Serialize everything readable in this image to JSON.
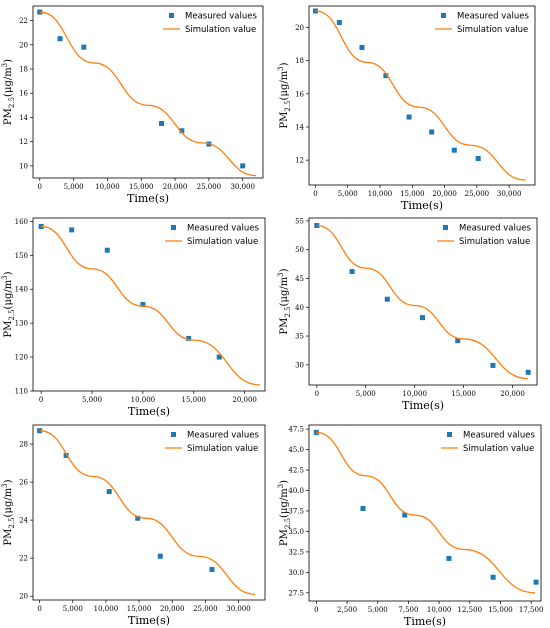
{
  "colors": {
    "measured": "#1f77b4",
    "simulation": "#ff7f0e",
    "axis": "#000000"
  },
  "chart_data": [
    {
      "type": "scatter+line",
      "legend_position": "top-right",
      "xlabel": "Time(s)",
      "ylabel": "PM2.5(μg/m³)",
      "xlim": [
        -1000,
        33000
      ],
      "ylim": [
        9.0,
        23.2
      ],
      "xticks": [
        0,
        5000,
        10000,
        15000,
        20000,
        25000,
        30000
      ],
      "xtick_labels": [
        "0",
        "5,000",
        "10,000",
        "15,000",
        "20,000",
        "25,000",
        "30,000"
      ],
      "yticks": [
        10,
        12,
        14,
        16,
        18,
        20,
        22
      ],
      "ytick_labels": [
        "10",
        "12",
        "14",
        "16",
        "18",
        "20",
        "22"
      ],
      "series": [
        {
          "name": "Measured values",
          "kind": "scatter",
          "x": [
            0,
            3000,
            6500,
            18000,
            21000,
            25000,
            30000
          ],
          "y": [
            22.7,
            20.5,
            19.8,
            13.5,
            12.9,
            11.8,
            10.0
          ]
        },
        {
          "name": "Simulation value",
          "kind": "line",
          "x": [
            0,
            8000,
            16000,
            24000,
            32000
          ],
          "y": [
            22.7,
            18.5,
            15.0,
            11.9,
            9.2
          ]
        }
      ]
    },
    {
      "type": "scatter+line",
      "legend_position": "top-right",
      "xlabel": "Time(s)",
      "ylabel": "PM2.5(μg/m³)",
      "xlim": [
        -1000,
        34000
      ],
      "ylim": [
        10.5,
        21.3
      ],
      "xticks": [
        0,
        5000,
        10000,
        15000,
        20000,
        25000,
        30000
      ],
      "xtick_labels": [
        "0",
        "5,000",
        "10,000",
        "15,000",
        "20,000",
        "25,000",
        "30,000"
      ],
      "yticks": [
        12,
        14,
        16,
        18,
        20
      ],
      "ytick_labels": [
        "12",
        "14",
        "16",
        "18",
        "20"
      ],
      "series": [
        {
          "name": "Measured values",
          "kind": "scatter",
          "x": [
            0,
            3700,
            7200,
            10900,
            14500,
            18000,
            21500,
            25200
          ],
          "y": [
            21.0,
            20.3,
            18.8,
            17.1,
            14.6,
            13.7,
            12.6,
            12.1
          ]
        },
        {
          "name": "Simulation value",
          "kind": "line",
          "x": [
            0,
            8000,
            16000,
            24000,
            32500
          ],
          "y": [
            21.0,
            17.9,
            15.2,
            12.9,
            10.8
          ]
        }
      ]
    },
    {
      "type": "scatter+line",
      "legend_position": "top-right",
      "xlabel": "Time(s)",
      "ylabel": "PM2.5(μg/m³)",
      "xlim": [
        -800,
        22000
      ],
      "ylim": [
        110,
        161
      ],
      "xticks": [
        0,
        5000,
        10000,
        15000,
        20000
      ],
      "xtick_labels": [
        "0",
        "5,000",
        "10,000",
        "15,000",
        "20,000"
      ],
      "yticks": [
        110,
        120,
        130,
        140,
        150,
        160
      ],
      "ytick_labels": [
        "110",
        "120",
        "130",
        "140",
        "150",
        "160"
      ],
      "series": [
        {
          "name": "Measured values",
          "kind": "scatter",
          "x": [
            0,
            3000,
            6500,
            10000,
            14500,
            17500
          ],
          "y": [
            158.5,
            157.5,
            151.5,
            135.5,
            125.5,
            120.0
          ]
        },
        {
          "name": "Simulation value",
          "kind": "line",
          "x": [
            0,
            5000,
            10000,
            15000,
            21500
          ],
          "y": [
            158.5,
            146.0,
            135.0,
            125.0,
            111.8
          ]
        }
      ]
    },
    {
      "type": "scatter+line",
      "legend_position": "top-right",
      "xlabel": "Time(s)",
      "ylabel": "PM2.5(μg/m³)",
      "xlim": [
        -800,
        22500
      ],
      "ylim": [
        26.5,
        55.5
      ],
      "xticks": [
        0,
        5000,
        10000,
        15000,
        20000
      ],
      "xtick_labels": [
        "0",
        "5,000",
        "10,000",
        "15,000",
        "20,000"
      ],
      "yticks": [
        30,
        35,
        40,
        45,
        50,
        55
      ],
      "ytick_labels": [
        "30",
        "35",
        "40",
        "45",
        "50",
        "55"
      ],
      "series": [
        {
          "name": "Measured values",
          "kind": "scatter",
          "x": [
            0,
            3600,
            7200,
            10800,
            14400,
            18000,
            21600
          ],
          "y": [
            54.2,
            46.2,
            41.4,
            38.2,
            34.2,
            29.9,
            28.7
          ]
        },
        {
          "name": "Simulation value",
          "kind": "line",
          "x": [
            0,
            5000,
            10000,
            15000,
            21600
          ],
          "y": [
            54.2,
            46.8,
            40.3,
            34.5,
            27.6
          ]
        }
      ]
    },
    {
      "type": "scatter+line",
      "legend_position": "top-right",
      "xlabel": "Time(s)",
      "ylabel": "PM2.5(μg/m³)",
      "xlim": [
        -1000,
        34000
      ],
      "ylim": [
        19.8,
        29.0
      ],
      "xticks": [
        0,
        5000,
        10000,
        15000,
        20000,
        25000,
        30000
      ],
      "xtick_labels": [
        "0",
        "5,000",
        "10,000",
        "15,000",
        "20,000",
        "25,000",
        "30,000"
      ],
      "yticks": [
        20,
        22,
        24,
        26,
        28
      ],
      "ytick_labels": [
        "20",
        "22",
        "24",
        "26",
        "28"
      ],
      "series": [
        {
          "name": "Measured values",
          "kind": "scatter",
          "x": [
            0,
            4000,
            10500,
            14800,
            18200,
            26000
          ],
          "y": [
            28.7,
            27.4,
            25.5,
            24.1,
            22.1,
            21.4
          ]
        },
        {
          "name": "Simulation value",
          "kind": "line",
          "x": [
            0,
            8000,
            16000,
            24000,
            32500
          ],
          "y": [
            28.7,
            26.3,
            24.1,
            22.1,
            20.1
          ]
        }
      ]
    },
    {
      "type": "scatter+line",
      "legend_position": "top-right",
      "xlabel": "Time(s)",
      "ylabel": "PM2.5(μg/m³)",
      "xlim": [
        -600,
        18300
      ],
      "ylim": [
        26.5,
        48.0
      ],
      "xticks": [
        0,
        2500,
        5000,
        7500,
        10000,
        12500,
        15000,
        17500
      ],
      "xtick_labels": [
        "0",
        "2,500",
        "5,000",
        "7,500",
        "10,000",
        "12,500",
        "15,000",
        "17,500"
      ],
      "yticks": [
        27.5,
        30.0,
        32.5,
        35.0,
        37.5,
        40.0,
        42.5,
        45.0,
        47.5
      ],
      "ytick_labels": [
        "27.5",
        "30.0",
        "32.5",
        "35.0",
        "37.5",
        "40.0",
        "42.5",
        "45.0",
        "47.5"
      ],
      "series": [
        {
          "name": "Measured values",
          "kind": "scatter",
          "x": [
            0,
            3800,
            7200,
            10800,
            14400,
            17900
          ],
          "y": [
            47.1,
            37.8,
            37.0,
            31.7,
            29.4,
            28.8
          ]
        },
        {
          "name": "Simulation value",
          "kind": "line",
          "x": [
            0,
            4000,
            8000,
            12000,
            17800
          ],
          "y": [
            47.1,
            41.8,
            37.0,
            32.8,
            27.5
          ]
        }
      ]
    }
  ]
}
